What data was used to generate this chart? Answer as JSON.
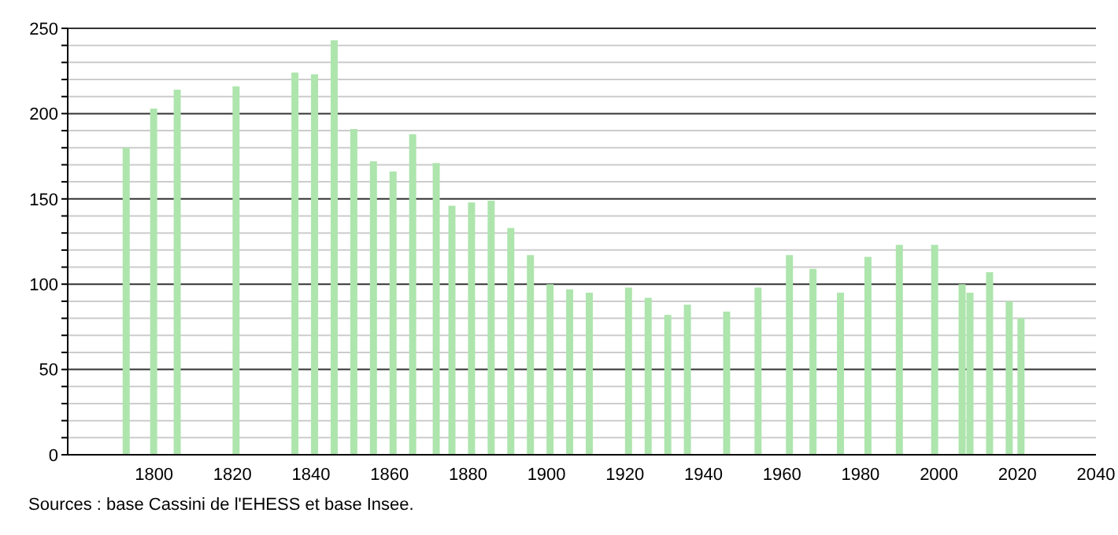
{
  "chart_data": {
    "type": "bar",
    "x": [
      1793,
      1800,
      1806,
      1821,
      1836,
      1841,
      1846,
      1851,
      1856,
      1861,
      1866,
      1872,
      1876,
      1881,
      1886,
      1891,
      1896,
      1901,
      1906,
      1911,
      1921,
      1926,
      1931,
      1936,
      1946,
      1954,
      1962,
      1968,
      1975,
      1982,
      1990,
      1999,
      2006,
      2008,
      2013,
      2018,
      2021
    ],
    "values": [
      180,
      203,
      214,
      216,
      224,
      223,
      243,
      191,
      172,
      166,
      188,
      171,
      146,
      148,
      149,
      133,
      117,
      100,
      97,
      95,
      98,
      92,
      82,
      88,
      84,
      98,
      117,
      109,
      95,
      116,
      123,
      123,
      100,
      95,
      107,
      90,
      80
    ],
    "color": "#ade5ad",
    "xlim": [
      1778,
      2040
    ],
    "xticks": [
      1800,
      1820,
      1840,
      1860,
      1880,
      1900,
      1920,
      1940,
      1960,
      1980,
      2000,
      2020,
      2040
    ],
    "ylim": [
      0,
      250
    ],
    "yticks": [
      0,
      {
        "value": 10,
        "label": null
      },
      {
        "value": 20,
        "label": null
      },
      {
        "value": 30,
        "label": null
      },
      {
        "value": 40,
        "label": null
      },
      50,
      {
        "value": 60,
        "label": null
      },
      {
        "value": 70,
        "label": null
      },
      {
        "value": 80,
        "label": null
      },
      {
        "value": 90,
        "label": null
      },
      100,
      {
        "value": 110,
        "label": null
      },
      {
        "value": 120,
        "label": null
      },
      {
        "value": 130,
        "label": null
      },
      {
        "value": 140,
        "label": null
      },
      150,
      {
        "value": 160,
        "label": null
      },
      {
        "value": 170,
        "label": null
      },
      {
        "value": 180,
        "label": null
      },
      {
        "value": 190,
        "label": null
      },
      200,
      {
        "value": 210,
        "label": null
      },
      {
        "value": 220,
        "label": null
      },
      {
        "value": 230,
        "label": null
      },
      {
        "value": 240,
        "label": null
      },
      250
    ],
    "grid": "y",
    "annotations": [
      "Sources : base Cassini de l'EHESS et base Insee."
    ]
  }
}
